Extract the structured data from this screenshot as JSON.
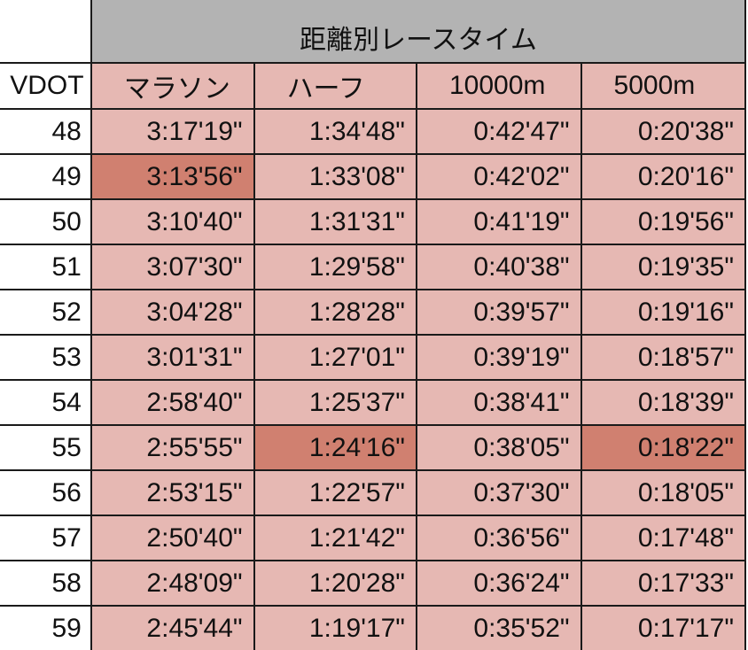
{
  "table": {
    "title": "距離別レースタイム",
    "headers": [
      "VDOT",
      "マラソン",
      "ハーフ",
      "10000m",
      "5000m"
    ],
    "colors": {
      "title_bg": "#b3b3b3",
      "cell_bg": "#e6b8b3",
      "highlight_bg": "#d08070",
      "border": "#1a1a1a"
    },
    "rows": [
      {
        "vdot": "48",
        "times": [
          "3:17'19\"",
          "1:34'48\"",
          "0:42'47\"",
          "0:20'38\""
        ],
        "highlight": [
          false,
          false,
          false,
          false
        ]
      },
      {
        "vdot": "49",
        "times": [
          "3:13'56\"",
          "1:33'08\"",
          "0:42'02\"",
          "0:20'16\""
        ],
        "highlight": [
          true,
          false,
          false,
          false
        ]
      },
      {
        "vdot": "50",
        "times": [
          "3:10'40\"",
          "1:31'31\"",
          "0:41'19\"",
          "0:19'56\""
        ],
        "highlight": [
          false,
          false,
          false,
          false
        ]
      },
      {
        "vdot": "51",
        "times": [
          "3:07'30\"",
          "1:29'58\"",
          "0:40'38\"",
          "0:19'35\""
        ],
        "highlight": [
          false,
          false,
          false,
          false
        ]
      },
      {
        "vdot": "52",
        "times": [
          "3:04'28\"",
          "1:28'28\"",
          "0:39'57\"",
          "0:19'16\""
        ],
        "highlight": [
          false,
          false,
          false,
          false
        ]
      },
      {
        "vdot": "53",
        "times": [
          "3:01'31\"",
          "1:27'01\"",
          "0:39'19\"",
          "0:18'57\""
        ],
        "highlight": [
          false,
          false,
          false,
          false
        ]
      },
      {
        "vdot": "54",
        "times": [
          "2:58'40\"",
          "1:25'37\"",
          "0:38'41\"",
          "0:18'39\""
        ],
        "highlight": [
          false,
          false,
          false,
          false
        ]
      },
      {
        "vdot": "55",
        "times": [
          "2:55'55\"",
          "1:24'16\"",
          "0:38'05\"",
          "0:18'22\""
        ],
        "highlight": [
          false,
          true,
          false,
          true
        ]
      },
      {
        "vdot": "56",
        "times": [
          "2:53'15\"",
          "1:22'57\"",
          "0:37'30\"",
          "0:18'05\""
        ],
        "highlight": [
          false,
          false,
          false,
          false
        ]
      },
      {
        "vdot": "57",
        "times": [
          "2:50'40\"",
          "1:21'42\"",
          "0:36'56\"",
          "0:17'48\""
        ],
        "highlight": [
          false,
          false,
          false,
          false
        ]
      },
      {
        "vdot": "58",
        "times": [
          "2:48'09\"",
          "1:20'28\"",
          "0:36'24\"",
          "0:17'33\""
        ],
        "highlight": [
          false,
          false,
          false,
          false
        ]
      },
      {
        "vdot": "59",
        "times": [
          "2:45'44\"",
          "1:19'17\"",
          "0:35'52\"",
          "0:17'17\""
        ],
        "highlight": [
          false,
          false,
          false,
          false
        ]
      }
    ]
  }
}
